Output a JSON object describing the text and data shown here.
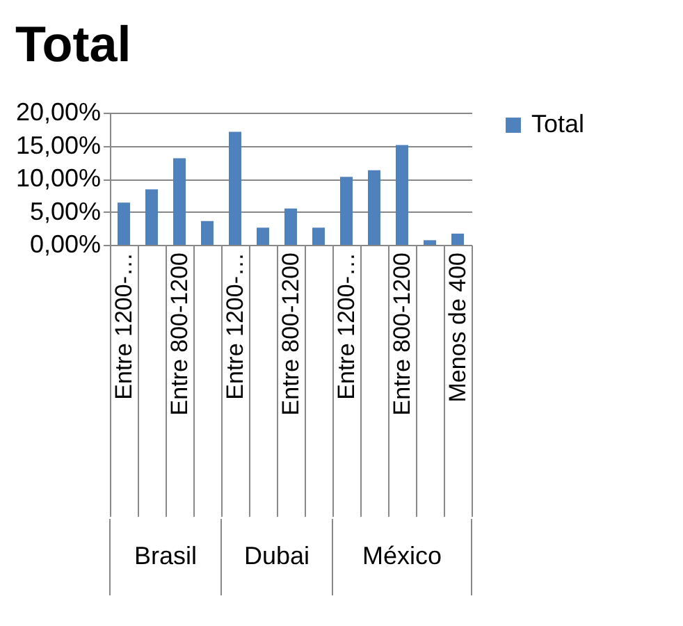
{
  "chart_data": {
    "type": "bar",
    "title": "Total",
    "categories": [
      "Entre 1200-…",
      null,
      "Entre 800-1200",
      null,
      "Entre 1200-…",
      null,
      "Entre 800-1200",
      null,
      "Entre 1200-…",
      null,
      "Entre 800-1200",
      null,
      "Menos de 400"
    ],
    "series": [
      {
        "name": "Total",
        "color": "#4f81bd",
        "values": [
          6.4,
          8.4,
          13.1,
          3.6,
          17.1,
          2.6,
          5.5,
          2.6,
          10.3,
          11.3,
          15.1,
          0.7,
          1.7
        ]
      }
    ],
    "annotations": [
      "Brasil",
      "Dubai",
      "México"
    ],
    "ylim": [
      0,
      20
    ],
    "yticks": [
      {
        "value": 0,
        "label": "0,00%"
      },
      {
        "value": 5,
        "label": "5,00%"
      },
      {
        "value": 10,
        "label": "10,00%"
      },
      {
        "value": 15,
        "label": "15,00%"
      },
      {
        "value": 20,
        "label": "20,00%"
      }
    ],
    "grid": "y",
    "legend": "right"
  }
}
